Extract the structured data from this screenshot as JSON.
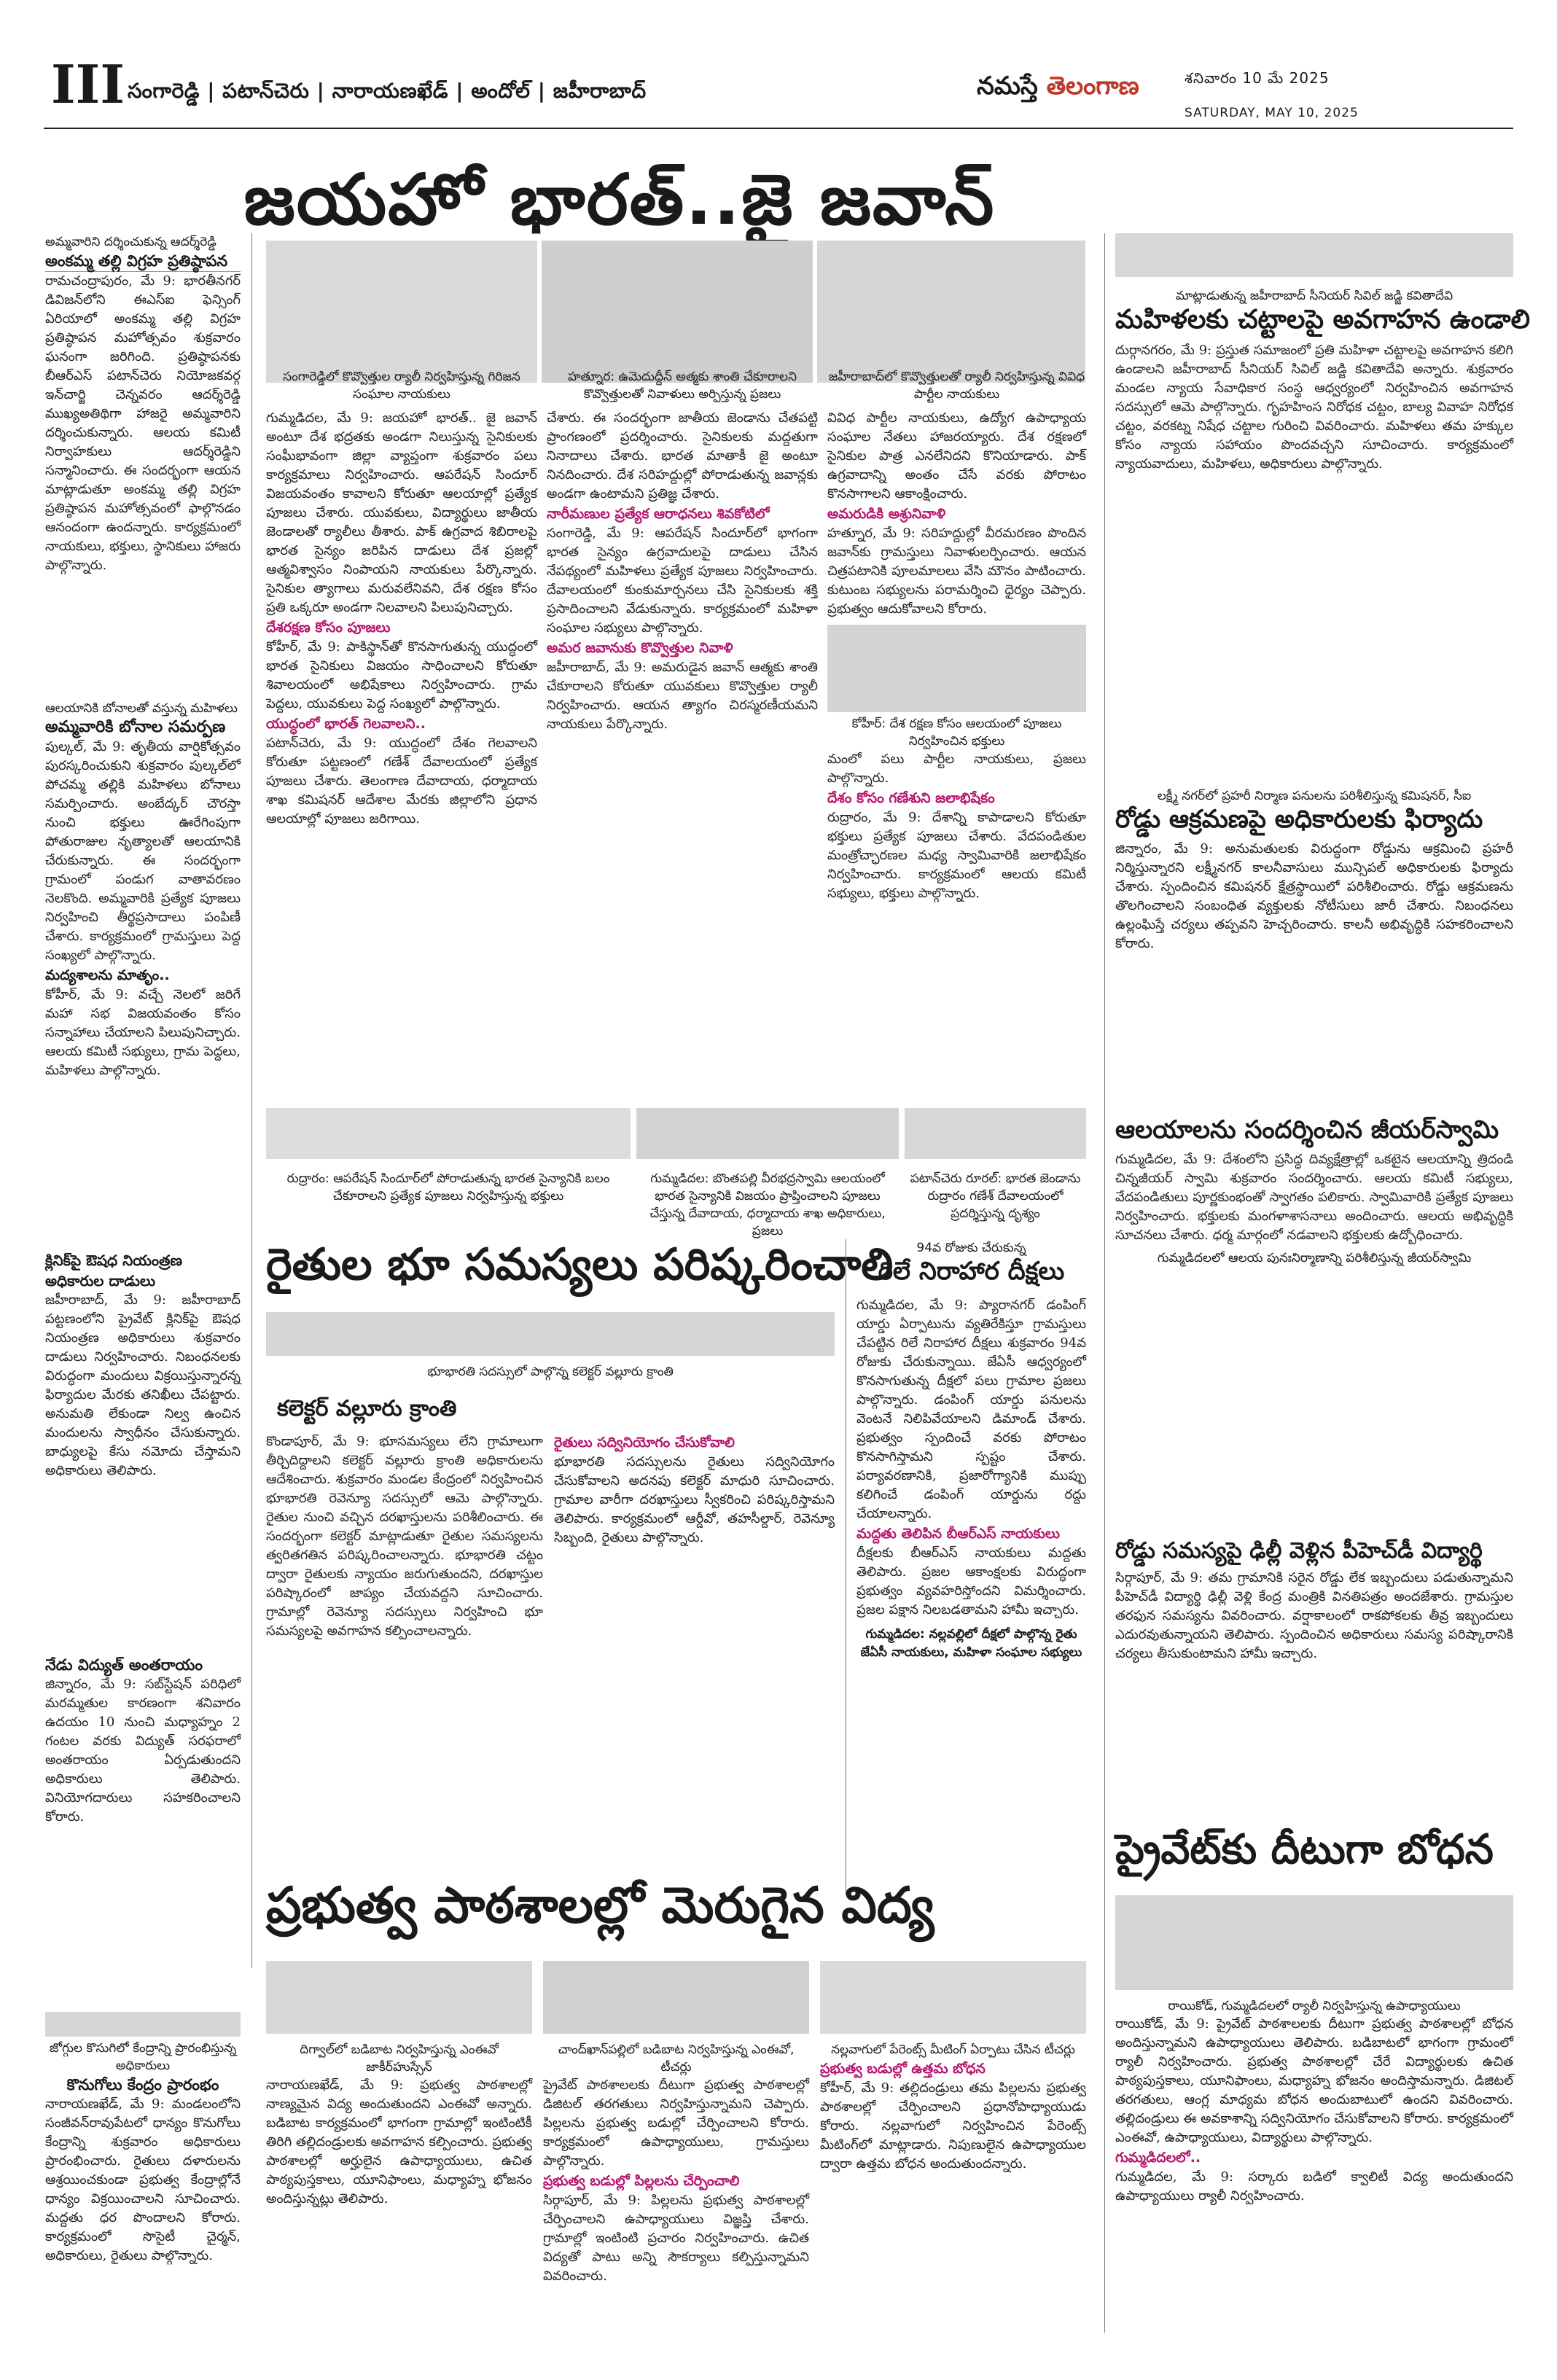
{
  "masthead": {
    "page_number": "III",
    "districts": "సంగారెడ్డి | పటాన్‌చెరు | నారాయణఖేడ్ | అందోల్ | జహీరాబాద్",
    "brand_main": "నమస్తే",
    "brand_accent": "తెలంగాణ",
    "date_telugu": "శనివారం 10 మే 2025",
    "date_english": "SATURDAY, MAY 10, 2025"
  },
  "banner_headline": "జయహో భారత్..జై జవాన్",
  "left_column": {
    "story1": {
      "kicker": "అమ్మవారిని దర్శించుకున్న ఆదర్శ్‌రెడ్డి",
      "headline": "అంకమ్మ తల్లి విగ్రహ ప్రతిష్ఠాపన",
      "body": "రామచంద్రాపురం, మే 9: భారతీనగర్ డివిజన్‌లోని ఈఎస్‌ఐ ఫెన్సింగ్ ఏరియాలో అంకమ్మ తల్లి విగ్రహ ప్రతిష్ఠాపన మహోత్సవం శుక్రవారం ఘనంగా జరిగింది. ప్రతిష్ఠాపనకు బీఆర్‌ఎస్ పటాన్‌చెరు నియోజకవర్గ ఇన్‌చార్జి చెన్నవరం ఆదర్శ్‌రెడ్డి ముఖ్యఅతిథిగా హాజరై అమ్మవారిని దర్శించుకున్నారు. ఆలయ కమిటీ నిర్వాహకులు ఆదర్శ్‌రెడ్డిని సన్మానించారు. ఈ సందర్భంగా ఆయన మాట్లాడుతూ అంకమ్మ తల్లి విగ్రహ ప్రతిష్ఠాపన మహోత్సవంలో ఫాల్గొనడం ఆనందంగా ఉందన్నారు. కార్యక్రమంలో నాయకులు, భక్తులు, స్థానికులు హాజరు పాల్గొన్నారు."
    },
    "story2": {
      "kicker": "ఆలయానికి బోనాలతో వస్తున్న మహిళలు",
      "headline": "అమ్మవారికి బోనాల సమర్పణ",
      "body": "పుల్కల్, మే 9: తృతీయ వార్షికోత్సవం పురస్కరించుకుని శుక్రవారం పుల్కల్‌లో పోచమ్మ తల్లికి మహిళలు బోనాలు సమర్పించారు. అంబేద్కర్ చౌరస్తా నుంచి భక్తులు ఊరేగింపుగా పోతురాజుల నృత్యాలతో ఆలయానికి చేరుకున్నారు. ఈ సందర్భంగా గ్రామంలో పండుగ వాతావరణం నెలకొంది. అమ్మవారికి ప్రత్యేక పూజలు నిర్వహించి తీర్థప్రసాదాలు పంపిణీ చేశారు. కార్యక్రమంలో గ్రామస్తులు పెద్ద సంఖ్యలో పాల్గొన్నారు.",
      "cross_head": "మద్యశాలను మాతృం..",
      "body2": "కోహీర్, మే 9: వచ్చే నెలలో జరిగే మహా సభ విజయవంతం కోసం సన్నాహాలు చేయాలని పిలుపునిచ్చారు. ఆలయ కమిటీ సభ్యులు, గ్రామ పెద్దలు, మహిళలు పాల్గొన్నారు."
    },
    "story3": {
      "headline": "క్లినిక్‌పై ఔషధ నియంత్రణ అధికారుల దాడులు",
      "body": "జహీరాబాద్, మే 9: జహీరాబాద్ పట్టణంలోని ప్రైవేట్ క్లినిక్‌పై ఔషధ నియంత్రణ అధికారులు శుక్రవారం దాడులు నిర్వహించారు. నిబంధనలకు విరుద్ధంగా మందులు విక్రయిస్తున్నారన్న ఫిర్యాదుల మేరకు తనిఖీలు చేపట్టారు. అనుమతి లేకుండా నిల్వ ఉంచిన మందులను స్వాధీనం చేసుకున్నారు. బాధ్యులపై కేసు నమోదు చేస్తామని అధికారులు తెలిపారు."
    },
    "story4": {
      "headline": "నేడు విద్యుత్ అంతరాయం",
      "body": "జిన్నారం, మే 9: సబ్‌స్టేషన్ పరిధిలో మరమ్మతుల కారణంగా శనివారం ఉదయం 10 నుంచి మధ్యాహ్నం 2 గంటల వరకు విద్యుత్ సరఫరాలో అంతరాయం ఏర్పడుతుందని అధికారులు తెలిపారు. వినియోగదారులు సహకరించాలని కోరారు."
    }
  },
  "upper_band": {
    "kicker1": "సంగారెడ్డిలో కొవ్వొత్తుల ర్యాలీ నిర్వహిస్తున్న గిరిజన సంఘాల నాయకులు",
    "col1_body": "గుమ్మడిదల, మే 9: జయహో భారత్.. జై జవాన్ అంటూ దేశ భద్రతకు అండగా నిలుస్తున్న సైనికులకు సంఘీభావంగా జిల్లా వ్యాప్తంగా శుక్రవారం పలు కార్యక్రమాలు నిర్వహించారు. ఆపరేషన్ సిందూర్ విజయవంతం కావాలని కోరుతూ ఆలయాల్లో ప్రత్యేక పూజలు చేశారు. యువకులు, విద్యార్థులు జాతీయ జెండాలతో ర్యాలీలు తీశారు. పాక్ ఉగ్రవాద శిబిరాలపై భారత సైన్యం జరిపిన దాడులు దేశ ప్రజల్లో ఆత్మవిశ్వాసం నింపాయని నాయకులు పేర్కొన్నారు. సైనికుల త్యాగాలు మరువలేనివని, దేశ రక్షణ కోసం ప్రతి ఒక్కరూ అండగా నిలవాలని పిలుపునిచ్చారు.",
    "col1_cross": "దేశరక్షణ కోసం పూజలు",
    "col1_body2": "కోహీర్, మే 9: పాకిస్థాన్‌తో కొనసాగుతున్న యుద్ధంలో భారత సైనికులు విజయం సాధించాలని కోరుతూ శివాలయంలో అభిషేకాలు నిర్వహించారు. గ్రామ పెద్దలు, యువకులు పెద్ద సంఖ్యలో పాల్గొన్నారు.",
    "col1_cross2": "యుద్ధంలో భారత్ గెలవాలని..",
    "col1_body3": "పటాన్‌చెరు, మే 9: యుద్ధంలో దేశం గెలవాలని కోరుతూ పట్టణంలో గణేశ్ దేవాలయంలో ప్రత్యేక పూజలు చేశారు. తెలంగాణ దేవాదాయ, ధర్మాదాయ శాఖ కమిషనర్ ఆదేశాల మేరకు జిల్లాలోని ప్రధాన ఆలయాల్లో పూజలు జరిగాయి.",
    "kicker2": "హత్నూర: ఉమెదుద్దీన్ అత్మకు శాంతి చేకూరాలని కొవ్వొత్తులతో నివాళులు అర్పిస్తున్న ప్రజలు",
    "col2_body": "చేశారు. ఈ సందర్భంగా జాతీయ జెండాను చేతపట్టి ప్రాంగణంలో ప్రదర్శించారు. సైనికులకు మద్దతుగా నినాదాలు చేశారు. భారత మాతాకీ జై అంటూ నినదించారు. దేశ సరిహద్దుల్లో పోరాడుతున్న జవాన్లకు అండగా ఉంటామని ప్రతిజ్ఞ చేశారు.",
    "col2_cross": "నారీమణుల ప్రత్యేక ఆరాధనలు శివకోటిలో",
    "col2_body2": "సంగారెడ్డి, మే 9: ఆపరేషన్ సిందూర్‌లో భాగంగా భారత సైన్యం ఉగ్రవాదులపై దాడులు చేసిన నేపథ్యంలో మహిళలు ప్రత్యేక పూజలు నిర్వహించారు. దేవాలయంలో కుంకుమార్చనలు చేసి సైనికులకు శక్తి ప్రసాదించాలని వేడుకున్నారు. కార్యక్రమంలో మహిళా సంఘాల సభ్యులు పాల్గొన్నారు.",
    "col2_cross2": "అమర జవానుకు కొవ్వొత్తుల నివాళి",
    "col2_body3": "జహీరాబాద్, మే 9: అమరుడైన జవాన్ ఆత్మకు శాంతి చేకూరాలని కోరుతూ యువకులు కొవ్వొత్తుల ర్యాలీ నిర్వహించారు. ఆయన త్యాగం చిరస్మరణీయమని నాయకులు పేర్కొన్నారు.",
    "kicker3": "జహీరాబాద్‌లో కొవ్వొత్తులతో ర్యాలీ నిర్వహిస్తున్న వివిధ పార్టీల నాయకులు",
    "col3_body": "వివిధ పార్టీల నాయకులు, ఉద్యోగ ఉపాధ్యాయ సంఘాల నేతలు హాజరయ్యారు. దేశ రక్షణలో సైనికుల పాత్ర ఎనలేనిదని కొనియాడారు. పాక్ ఉగ్రవాదాన్ని అంతం చేసే వరకు పోరాటం కొనసాగాలని ఆకాంక్షించారు.",
    "col3_cross": "అమరుడికి అశ్రునివాళి",
    "col3_body2": "హత్నూర, మే 9: సరిహద్దుల్లో వీరమరణం పొందిన జవాన్‌కు గ్రామస్తులు నివాళులర్పించారు. ఆయన చిత్రపటానికి పూలమాలలు వేసి మౌనం పాటించారు. కుటుంబ సభ్యులను పరామర్శించి ధైర్యం చెప్పారు. ప్రభుత్వం ఆదుకోవాలని కోరారు.",
    "kicker4": "కోహీర్: దేశ రక్షణ కోసం ఆలయంలో పూజలు నిర్వహించిన భక్తులు",
    "col3_body3": "మంలో పలు పార్టీల నాయకులు, ప్రజలు పాల్గొన్నారు.",
    "col3_cross2": "దేశం కోసం గణేశుని జలాభిషేకం",
    "col3_body4": "రుద్రారం, మే 9: దేశాన్ని కాపాడాలని కోరుతూ భక్తులు ప్రత్యేక పూజలు చేశారు. వేదపండితుల మంత్రోచ్ఛారణల మధ్య స్వామివారికి జలాభిషేకం నిర్వహించారు. కార్యక్రమంలో ఆలయ కమిటీ సభ్యులు, భక్తులు పాల్గొన్నారు."
  },
  "photo_captions": {
    "photo1": "రుద్రారం: ఆపరేషన్ సిందూర్‌లో పోరాడుతున్న భారత సైన్యానికి బలం చేకూరాలని ప్రత్యేక పూజలు నిర్వహిస్తున్న భక్తులు",
    "photo2": "గుమ్మడిదల: బొంతపల్లి వీరభద్రస్వామి ఆలయంలో భారత సైన్యానికి విజయం ప్రాప్తించాలని పూజలు చేస్తున్న దేవాదాయ, ధర్మాదాయ శాఖ అధికారులు, ప్రజలు",
    "photo3": "పటాన్‌చెరు రూరల్: భారత జెండాను రుద్రారం గణేశ్ దేవాలయంలో ప్రదర్శిస్తున్న దృశ్యం"
  },
  "farmers": {
    "headline": "రైతుల భూ సమస్యలు పరిష్కరించాలి",
    "kicker": "భూభారతి సదస్సులో పాల్గొన్న కలెక్టర్ వల్లూరు క్రాంతి",
    "sub_head": "కలెక్టర్ వల్లూరు క్రాంతి",
    "body": "కొండాపూర్, మే 9: భూసమస్యలు లేని గ్రామాలుగా తీర్చిదిద్దాలని కలెక్టర్ వల్లూరు క్రాంతి అధికారులను ఆదేశించారు. శుక్రవారం మండల కేంద్రంలో నిర్వహించిన భూభారతి రెవెన్యూ సదస్సులో ఆమె పాల్గొన్నారు. రైతుల నుంచి వచ్చిన దరఖాస్తులను పరిశీలించారు. ఈ సందర్భంగా కలెక్టర్ మాట్లాడుతూ రైతుల సమస్యలను త్వరితగతిన పరిష్కరించాలన్నారు. భూభారతి చట్టం ద్వారా రైతులకు న్యాయం జరుగుతుందని, దరఖాస్తుల పరిష్కారంలో జాప్యం చేయవద్దని సూచించారు. గ్రామాల్లో రెవెన్యూ సదస్సులు నిర్వహించి భూ సమస్యలపై అవగాహన కల్పించాలన్నారు.",
    "cross": "రైతులు సద్వినియోగం చేసుకోవాలి",
    "body2": "భూభారతి సదస్సులను రైతులు సద్వినియోగం చేసుకోవాలని అదనపు కలెక్టర్ మాధురి సూచించారు. గ్రామాల వారీగా దరఖాస్తులు స్వీకరించి పరిష్కరిస్తామని తెలిపారు. కార్యక్రమంలో ఆర్డీవో, తహసీల్దార్, రెవెన్యూ సిబ్బంది, రైతులు పాల్గొన్నారు."
  },
  "hunger_strike": {
    "kicker": "94వ రోజుకు చేరుకున్న",
    "headline": "రిలే నిరాహార దీక్షలు",
    "body": "గుమ్మడిదల, మే 9: ప్యారానగర్ డంపింగ్ యార్డు ఏర్పాటును వ్యతిరేకిస్తూ గ్రామస్తులు చేపట్టిన రిలే నిరాహార దీక్షలు శుక్రవారం 94వ రోజుకు చేరుకున్నాయి. జేఏసీ ఆధ్వర్యంలో కొనసాగుతున్న దీక్షలో పలు గ్రామాల ప్రజలు పాల్గొన్నారు. డంపింగ్ యార్డు పనులను వెంటనే నిలిపివేయాలని డిమాండ్ చేశారు. ప్రభుత్వం స్పందించే వరకు పోరాటం కొనసాగిస్తామని స్పష్టం చేశారు. పర్యావరణానికి, ప్రజారోగ్యానికి ముప్పు కలిగించే డంపింగ్ యార్డును రద్దు చేయాలన్నారు.",
    "cross": "మద్దతు తెలిపిన బీఆర్‌ఎస్ నాయకులు",
    "body2": "దీక్షలకు బీఆర్‌ఎస్ నాయకులు మద్దతు తెలిపారు. ప్రజల ఆకాంక్షలకు విరుద్ధంగా ప్రభుత్వం వ్యవహరిస్తోందని విమర్శించారు. ప్రజల పక్షాన నిలబడతామని హామీ ఇచ్చారు.",
    "caption": "గుమ్మడిదల: నల్లవల్లిలో దీక్షలో పాల్గొన్న రైతు జేఏసీ నాయకులు, మహిళా సంఘాల సభ్యులు"
  },
  "schools": {
    "headline": "ప్రభుత్వ పాఠశాలల్లో మెరుగైన విద్య",
    "kicker1": "దిగ్వాల్‌లో బడిబాట నిర్వహిస్తున్న ఎంఈవో జాకీర్‌హుస్సేన్",
    "kicker2": "చాంద్‌ఖాన్‌పల్లిలో బడిబాట నిర్వహిస్తున్న ఎంఈవో, టీచర్లు",
    "kicker3": "నల్లవాగులో పేరెంట్స్ మీటింగ్ ఏర్పాటు చేసిన టీచర్లు",
    "body1": "నారాయణఖేడ్, మే 9: ప్రభుత్వ పాఠశాలల్లో నాణ్యమైన విద్య అందుతుందని ఎంఈవో అన్నారు. బడిబాట కార్యక్రమంలో భాగంగా గ్రామాల్లో ఇంటింటికీ తిరిగి తల్లిదండ్రులకు అవగాహన కల్పించారు. ప్రభుత్వ పాఠశాలల్లో అర్హులైన ఉపాధ్యాయులు, ఉచిత పాఠ్యపుస్తకాలు, యూనిఫాంలు, మధ్యాహ్న భోజనం అందిస్తున్నట్లు తెలిపారు.",
    "body2": "ప్రైవేట్ పాఠశాలలకు దీటుగా ప్రభుత్వ పాఠశాలల్లో డిజిటల్ తరగతులు నిర్వహిస్తున్నామని చెప్పారు. పిల్లలను ప్రభుత్వ బడుల్లో చేర్పించాలని కోరారు. కార్యక్రమంలో ఉపాధ్యాయులు, గ్రామస్తులు పాల్గొన్నారు.",
    "cross1": "ప్రభుత్వ బడుల్లో పిల్లలను చేర్పించాలి",
    "body3": "సిర్గాపూర్, మే 9: పిల్లలను ప్రభుత్వ పాఠశాలల్లో చేర్పించాలని ఉపాధ్యాయులు విజ్ఞప్తి చేశారు. గ్రామాల్లో ఇంటింటి ప్రచారం నిర్వహించారు. ఉచిత విద్యతో పాటు అన్ని సౌకర్యాలు కల్పిస్తున్నామని వివరించారు.",
    "cross2": "ప్రభుత్వ బడుల్లో ఉత్తమ బోధన",
    "body4": "కోహీర్, మే 9: తల్లిదండ్రులు తమ పిల్లలను ప్రభుత్వ పాఠశాలల్లో చేర్పించాలని ప్రధానోపాధ్యాయుడు కోరారు. నల్లవాగులో నిర్వహించిన పేరెంట్స్ మీటింగ్‌లో మాట్లాడారు. నిపుణులైన ఉపాధ్యాయుల ద్వారా ఉత్తమ బోధన అందుతుందన్నారు."
  },
  "kosgi": {
    "kicker": "జోగ్గుల కొసుగిలో కేంద్రాన్ని ప్రారంభిస్తున్న అధికారులు",
    "headline": "కొనుగోలు కేంద్రం ప్రారంభం",
    "body": "నారాయణఖేడ్, మే 9: మండలంలోని సంజీవన్‌రావుపేటలో ధాన్యం కొనుగోలు కేంద్రాన్ని శుక్రవారం అధికారులు ప్రారంభించారు. రైతులు దళారులను ఆశ్రయించకుండా ప్రభుత్వ కేంద్రాల్లోనే ధాన్యం విక్రయించాలని సూచించారు. మద్దతు ధర పొందాలని కోరారు. కార్యక్రమంలో సొసైటీ చైర్మన్, అధికారులు, రైతులు పాల్గొన్నారు."
  },
  "right_column": {
    "story1": {
      "kicker": "మాట్లాడుతున్న జహీరాబాద్ సీనియర్ సివిల్ జడ్జి కవితాదేవి",
      "headline": "మహిళలకు చట్టాలపై అవగాహన ఉండాలి",
      "body": "దుర్గానగరం, మే 9: ప్రస్తుత సమాజంలో ప్రతి మహిళా చట్టాలపై అవగాహన కలిగి ఉండాలని జహీరాబాద్ సీనియర్ సివిల్ జడ్జి కవితాదేవి అన్నారు. శుక్రవారం మండల న్యాయ సేవాధికార సంస్థ ఆధ్వర్యంలో నిర్వహించిన అవగాహన సదస్సులో ఆమె పాల్గొన్నారు. గృహహింస నిరోధక చట్టం, బాల్య వివాహ నిరోధక చట్టం, వరకట్న నిషేధ చట్టాల గురించి వివరించారు. మహిళలు తమ హక్కుల కోసం న్యాయ సహాయం పొందవచ్చని సూచించారు. కార్యక్రమంలో న్యాయవాదులు, మహిళలు, అధికారులు పాల్గొన్నారు."
    },
    "story2": {
      "kicker": "లక్ష్మీ నగర్‌లో ప్రహరీ నిర్మాణ పనులను పరిశీలిస్తున్న కమిషనర్, సీఐ",
      "headline": "రోడ్డు ఆక్రమణపై అధికారులకు ఫిర్యాదు",
      "body": "జిన్నారం, మే 9: అనుమతులకు విరుద్ధంగా రోడ్డును ఆక్రమించి ప్రహరీ నిర్మిస్తున్నారని లక్ష్మీనగర్ కాలనీవాసులు మున్సిపల్ అధికారులకు ఫిర్యాదు చేశారు. స్పందించిన కమిషనర్ క్షేత్రస్థాయిలో పరిశీలించారు. రోడ్డు ఆక్రమణను తొలగించాలని సంబంధిత వ్యక్తులకు నోటీసులు జారీ చేశారు. నిబంధనలు ఉల్లంఘిస్తే చర్యలు తప్పవని హెచ్చరించారు. కాలనీ అభివృద్ధికి సహకరించాలని కోరారు."
    },
    "story3": {
      "headline": "ఆలయాలను సందర్శించిన జీయర్‌స్వామి",
      "body": "గుమ్మడిదల, మే 9: దేశంలోని ప్రసిద్ధ దివ్యక్షేత్రాల్లో ఒకటైన ఆలయాన్ని త్రిదండి చిన్నజీయర్ స్వామి శుక్రవారం సందర్శించారు. ఆలయ కమిటీ సభ్యులు, వేదపండితులు పూర్ణకుంభంతో స్వాగతం పలికారు. స్వామివారికి ప్రత్యేక పూజలు నిర్వహించారు. భక్తులకు మంగళాశాసనాలు అందించారు. ఆలయ అభివృద్ధికి సూచనలు చేశారు. ధర్మ మార్గంలో నడవాలని భక్తులకు ఉద్బోధించారు.",
      "photo_caption": "గుమ్మడిదలలో ఆలయ పునఃనిర్మాణాన్ని పరిశీలిస్తున్న జీయర్‌స్వామి"
    },
    "story4": {
      "headline": "రోడ్డు సమస్యపై ఢిల్లీ వెళ్లిన పీహెచ్‌డీ విద్యార్థి",
      "body": "సిర్గాపూర్, మే 9: తమ గ్రామానికి సరైన రోడ్డు లేక ఇబ్బందులు పడుతున్నామని పీహెచ్‌డీ విద్యార్థి ఢిల్లీ వెళ్లి కేంద్ర మంత్రికి వినతిపత్రం అందజేశారు. గ్రామస్తుల తరఫున సమస్యను వివరించారు. వర్షాకాలంలో రాకపోకలకు తీవ్ర ఇబ్బందులు ఎదురవుతున్నాయని తెలిపారు. స్పందించిన అధికారులు సమస్య పరిష్కారానికి చర్యలు తీసుకుంటామని హామీ ఇచ్చారు."
    },
    "story5": {
      "headline": "ప్రైవేట్‌కు దీటుగా బోధన",
      "kicker": "రాయికోడ్, గుమ్మడిదలలో ర్యాలీ నిర్వహిస్తున్న ఉపాధ్యాయులు",
      "body": "రాయికోడ్, మే 9: ప్రైవేట్ పాఠశాలలకు దీటుగా ప్రభుత్వ పాఠశాలల్లో బోధన అందిస్తున్నామని ఉపాధ్యాయులు తెలిపారు. బడిబాటలో భాగంగా గ్రామంలో ర్యాలీ నిర్వహించారు. ప్రభుత్వ పాఠశాలల్లో చేరే విద్యార్థులకు ఉచిత పాఠ్యపుస్తకాలు, యూనిఫాంలు, మధ్యాహ్న భోజనం అందిస్తామన్నారు. డిజిటల్ తరగతులు, ఆంగ్ల మాధ్యమ బోధన అందుబాటులో ఉందని వివరించారు. తల్లిదండ్రులు ఈ అవకాశాన్ని సద్వినియోగం చేసుకోవాలని కోరారు. కార్యక్రమంలో ఎంఈవో, ఉపాధ్యాయులు, విద్యార్థులు పాల్గొన్నారు.",
      "cross": "గుమ్మడిదలలో..",
      "body2": "గుమ్మడిదల, మే 9: సర్కారు బడిలో క్వాలిటీ విద్య అందుతుందని ఉపాధ్యాయులు ర్యాలీ నిర్వహించారు."
    }
  }
}
